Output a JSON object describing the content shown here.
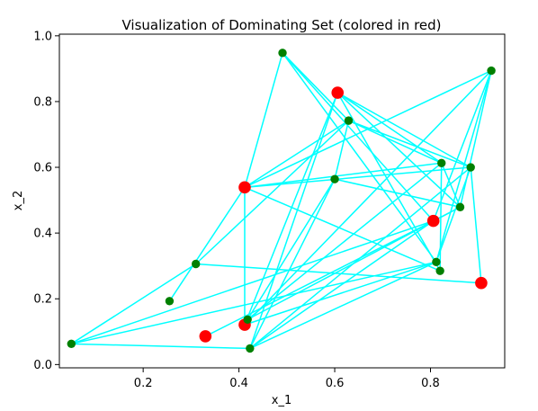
{
  "chart_data": {
    "type": "scatter",
    "title": "Visualization of Dominating Set (colored in red)",
    "xlabel": "x_1",
    "ylabel": "x_2",
    "xlim": [
      0.025,
      0.955
    ],
    "ylim": [
      -0.01,
      1.005
    ],
    "xticks": [
      0.2,
      0.4,
      0.6,
      0.8
    ],
    "yticks": [
      0.0,
      0.2,
      0.4,
      0.6,
      0.8,
      1.0
    ],
    "x_tick_labels": [
      "0.2",
      "0.4",
      "0.6",
      "0.8"
    ],
    "y_tick_labels": [
      "0.0",
      "0.2",
      "0.4",
      "0.6",
      "0.8",
      "1.0"
    ],
    "grid": false,
    "legend": "none",
    "node_color": "#008000",
    "dominating_color": "#ff0000",
    "edge_color": "#00ffff",
    "nodes": [
      {
        "id": 0,
        "x": 0.05,
        "y": 0.063,
        "dominating": false
      },
      {
        "id": 1,
        "x": 0.255,
        "y": 0.193,
        "dominating": false
      },
      {
        "id": 2,
        "x": 0.31,
        "y": 0.306,
        "dominating": false
      },
      {
        "id": 3,
        "x": 0.33,
        "y": 0.086,
        "dominating": true
      },
      {
        "id": 4,
        "x": 0.412,
        "y": 0.121,
        "dominating": true
      },
      {
        "id": 5,
        "x": 0.412,
        "y": 0.539,
        "dominating": true
      },
      {
        "id": 6,
        "x": 0.418,
        "y": 0.137,
        "dominating": false
      },
      {
        "id": 7,
        "x": 0.423,
        "y": 0.049,
        "dominating": false
      },
      {
        "id": 8,
        "x": 0.491,
        "y": 0.948,
        "dominating": false
      },
      {
        "id": 9,
        "x": 0.6,
        "y": 0.564,
        "dominating": false
      },
      {
        "id": 10,
        "x": 0.606,
        "y": 0.827,
        "dominating": true
      },
      {
        "id": 11,
        "x": 0.629,
        "y": 0.742,
        "dominating": false
      },
      {
        "id": 12,
        "x": 0.806,
        "y": 0.437,
        "dominating": true
      },
      {
        "id": 13,
        "x": 0.812,
        "y": 0.312,
        "dominating": false
      },
      {
        "id": 14,
        "x": 0.82,
        "y": 0.285,
        "dominating": false
      },
      {
        "id": 15,
        "x": 0.823,
        "y": 0.613,
        "dominating": false
      },
      {
        "id": 16,
        "x": 0.862,
        "y": 0.479,
        "dominating": false
      },
      {
        "id": 17,
        "x": 0.884,
        "y": 0.6,
        "dominating": false
      },
      {
        "id": 18,
        "x": 0.906,
        "y": 0.248,
        "dominating": true
      },
      {
        "id": 19,
        "x": 0.927,
        "y": 0.894,
        "dominating": false
      }
    ],
    "edges": [
      [
        0,
        2
      ],
      [
        0,
        7
      ],
      [
        0,
        12
      ],
      [
        1,
        5
      ],
      [
        2,
        11
      ],
      [
        2,
        18
      ],
      [
        3,
        12
      ],
      [
        4,
        13
      ],
      [
        4,
        10
      ],
      [
        4,
        5
      ],
      [
        4,
        19
      ],
      [
        5,
        15
      ],
      [
        5,
        11
      ],
      [
        5,
        17
      ],
      [
        5,
        19
      ],
      [
        5,
        14
      ],
      [
        6,
        9
      ],
      [
        6,
        16
      ],
      [
        6,
        15
      ],
      [
        7,
        10
      ],
      [
        7,
        17
      ],
      [
        7,
        13
      ],
      [
        7,
        9
      ],
      [
        8,
        5
      ],
      [
        8,
        11
      ],
      [
        8,
        13
      ],
      [
        8,
        12
      ],
      [
        9,
        16
      ],
      [
        9,
        11
      ],
      [
        10,
        14
      ],
      [
        10,
        16
      ],
      [
        10,
        15
      ],
      [
        10,
        17
      ],
      [
        11,
        17
      ],
      [
        12,
        19
      ],
      [
        12,
        16
      ],
      [
        13,
        17
      ],
      [
        13,
        19
      ],
      [
        14,
        15
      ],
      [
        15,
        16
      ],
      [
        16,
        19
      ],
      [
        17,
        18
      ],
      [
        11,
        15
      ],
      [
        0,
        13
      ],
      [
        7,
        12
      ]
    ]
  }
}
